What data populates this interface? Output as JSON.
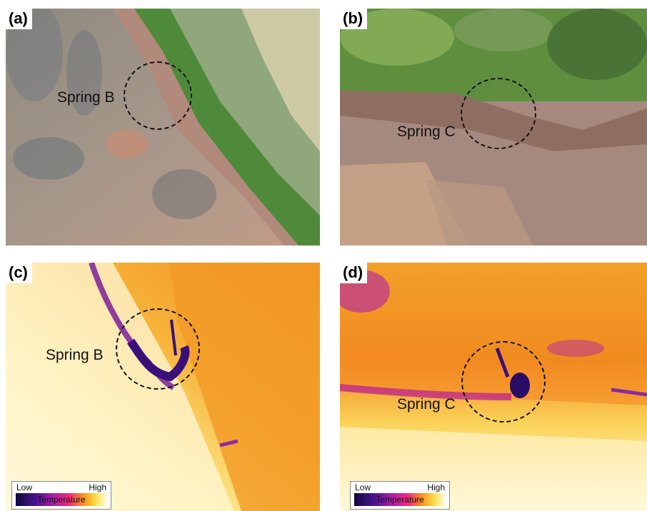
{
  "panels": {
    "a": {
      "label": "(a)",
      "spring": "Spring B"
    },
    "b": {
      "label": "(b)",
      "spring": "Spring C"
    },
    "c": {
      "label": "(c)",
      "spring": "Spring B"
    },
    "d": {
      "label": "(d)",
      "spring": "Spring C"
    }
  },
  "legend": {
    "low": "Low",
    "high": "High",
    "title": "Temperature"
  },
  "colors": {
    "circle": "#111111",
    "thermal_cold": "#3a0f7a",
    "thermal_warm": "#f7941d",
    "thermal_hot": "#fffde8"
  }
}
